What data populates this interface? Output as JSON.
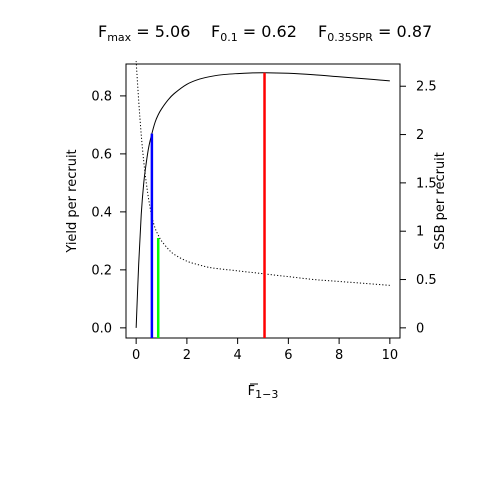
{
  "chart_data": {
    "type": "line",
    "title": {
      "fmax": {
        "base": "F",
        "sub": "max",
        "value": " = 5.06"
      },
      "f01": {
        "base": "F",
        "sub": "0.1",
        "value": " = 0.62"
      },
      "fspr": {
        "base": "F",
        "sub": "0.35SPR",
        "value": " = 0.87"
      }
    },
    "xlabel": {
      "base": "F",
      "sub": "1−3"
    },
    "ylabel_left": "Yield per recruit",
    "ylabel_right": "SSB per recruit",
    "xlim": [
      -0.4,
      10.4
    ],
    "ylim_left": [
      -0.035,
      0.91
    ],
    "ylim_right": [
      -0.105,
      2.73
    ],
    "x_ticks": [
      0,
      2,
      4,
      6,
      8,
      10
    ],
    "x_tick_labels": [
      "0",
      "2",
      "4",
      "6",
      "8",
      "10"
    ],
    "yleft_ticks": [
      0.0,
      0.2,
      0.4,
      0.6,
      0.8
    ],
    "yleft_tick_labels": [
      "0.0",
      "0.2",
      "0.4",
      "0.6",
      "0.8"
    ],
    "yright_ticks": [
      0,
      0.5,
      1,
      1.5,
      2,
      2.5
    ],
    "yright_tick_labels": [
      "0",
      "0.5",
      "1",
      "1.5",
      "2",
      "2.5"
    ],
    "grid": false,
    "series": [
      {
        "axis": "left",
        "style": "solid",
        "color": "#000000",
        "x": [
          0,
          0.1,
          0.2,
          0.3,
          0.4,
          0.5,
          0.62,
          0.75,
          0.87,
          1.0,
          1.25,
          1.5,
          2.0,
          2.5,
          3.0,
          3.5,
          4.0,
          4.5,
          5.06,
          6.0,
          7.0,
          8.0,
          9.0,
          10.0
        ],
        "y": [
          0,
          0.22,
          0.39,
          0.5,
          0.57,
          0.625,
          0.67,
          0.71,
          0.735,
          0.755,
          0.785,
          0.808,
          0.84,
          0.858,
          0.868,
          0.874,
          0.877,
          0.879,
          0.88,
          0.878,
          0.873,
          0.866,
          0.859,
          0.852
        ]
      },
      {
        "axis": "right",
        "style": "dotted",
        "color": "#000000",
        "x": [
          0,
          0.1,
          0.2,
          0.3,
          0.4,
          0.5,
          0.62,
          0.75,
          0.87,
          1.0,
          1.25,
          1.5,
          2.0,
          2.5,
          3.0,
          4.0,
          5.0,
          6.0,
          7.0,
          8.0,
          9.0,
          10.0
        ],
        "y": [
          2.76,
          2.35,
          2.0,
          1.72,
          1.5,
          1.32,
          1.15,
          1.03,
          0.96,
          0.9,
          0.82,
          0.76,
          0.69,
          0.65,
          0.62,
          0.59,
          0.56,
          0.53,
          0.5,
          0.48,
          0.46,
          0.44
        ]
      }
    ],
    "reference_lines": [
      {
        "name": "Fmax",
        "x": 5.06,
        "y_top": 0.88,
        "color": "#ff0000"
      },
      {
        "name": "F0.1",
        "x": 0.62,
        "y_top": 0.67,
        "color": "#0000ff"
      },
      {
        "name": "F0.35SPR",
        "x": 0.87,
        "y_top": 0.31,
        "color": "#00ff00"
      }
    ]
  }
}
